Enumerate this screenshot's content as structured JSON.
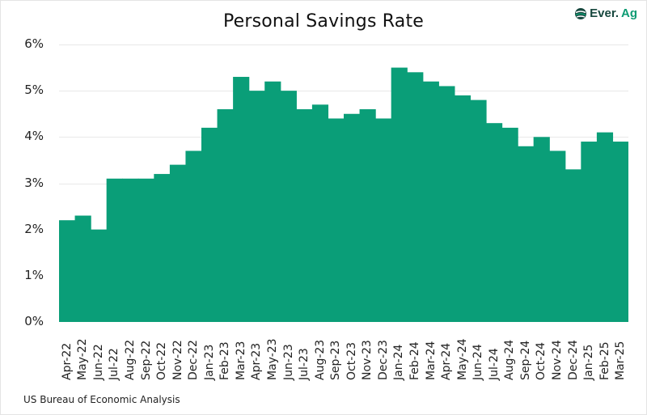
{
  "header": {
    "title": "Personal Savings Rate",
    "logo": {
      "icon": "ever-ag-logo-icon",
      "text_dark": "Ever.",
      "text_accent": "Ag"
    }
  },
  "footer": {
    "source": "US Bureau of Economic Analysis"
  },
  "colors": {
    "bar": "#0a9e78",
    "grid": "#e8e8e8",
    "logo_dark": "#17473e",
    "logo_accent": "#0d9b73"
  },
  "chart_data": {
    "type": "bar",
    "title": "Personal Savings Rate",
    "xlabel": "",
    "ylabel": "",
    "ylim": [
      0,
      6
    ],
    "y_ticks": [
      "0%",
      "1%",
      "2%",
      "3%",
      "4%",
      "5%",
      "6%"
    ],
    "grid": true,
    "legend": null,
    "categories": [
      "Apr-22",
      "May-22",
      "Jun-22",
      "Jul-22",
      "Aug-22",
      "Sep-22",
      "Oct-22",
      "Nov-22",
      "Dec-22",
      "Jan-23",
      "Feb-23",
      "Mar-23",
      "Apr-23",
      "May-23",
      "Jun-23",
      "Jul-23",
      "Aug-23",
      "Sep-23",
      "Oct-23",
      "Nov-23",
      "Dec-23",
      "Jan-24",
      "Feb-24",
      "Mar-24",
      "Apr-24",
      "May-24",
      "Jun-24",
      "Jul-24",
      "Aug-24",
      "Sep-24",
      "Oct-24",
      "Nov-24",
      "Dec-24",
      "Jan-25",
      "Feb-25",
      "Mar-25"
    ],
    "values": [
      2.2,
      2.3,
      2.0,
      3.1,
      3.1,
      3.1,
      3.2,
      3.4,
      3.7,
      4.2,
      4.6,
      5.3,
      5.0,
      5.2,
      5.0,
      4.6,
      4.7,
      4.4,
      4.5,
      4.6,
      4.4,
      5.5,
      5.4,
      5.2,
      5.1,
      4.9,
      4.8,
      4.3,
      4.2,
      3.8,
      4.0,
      3.7,
      3.3,
      3.9,
      4.1,
      3.9
    ],
    "source": "US Bureau of Economic Analysis"
  }
}
